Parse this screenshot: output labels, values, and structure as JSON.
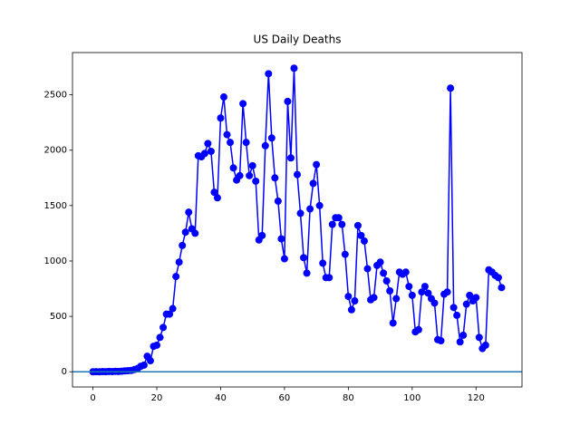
{
  "chart_data": {
    "type": "line",
    "title": "US Daily Deaths",
    "x": [
      0,
      1,
      2,
      3,
      4,
      5,
      6,
      7,
      8,
      9,
      10,
      11,
      12,
      13,
      14,
      15,
      16,
      17,
      18,
      19,
      20,
      21,
      22,
      23,
      24,
      25,
      26,
      27,
      28,
      29,
      30,
      31,
      32,
      33,
      34,
      35,
      36,
      37,
      38,
      39,
      40,
      41,
      42,
      43,
      44,
      45,
      46,
      47,
      48,
      49,
      50,
      51,
      52,
      53,
      54,
      55,
      56,
      57,
      58,
      59,
      60,
      61,
      62,
      63,
      64,
      65,
      66,
      67,
      68,
      69,
      70,
      71,
      72,
      73,
      74,
      75,
      76,
      77,
      78,
      79,
      80,
      81,
      82,
      83,
      84,
      85,
      86,
      87,
      88,
      89,
      90,
      91,
      92,
      93,
      94,
      95,
      96,
      97,
      98,
      99,
      100,
      101,
      102,
      103,
      104,
      105,
      106,
      107,
      108,
      109,
      110,
      111,
      112,
      113,
      114,
      115,
      116,
      117,
      118,
      119,
      120,
      121,
      122,
      123,
      124,
      125,
      126,
      127,
      128
    ],
    "values": [
      0,
      1,
      0,
      2,
      1,
      3,
      2,
      4,
      3,
      5,
      8,
      10,
      12,
      20,
      30,
      50,
      60,
      140,
      100,
      230,
      240,
      310,
      400,
      520,
      520,
      570,
      860,
      990,
      1140,
      1260,
      1440,
      1290,
      1250,
      1950,
      1940,
      1970,
      2060,
      1990,
      1620,
      1570,
      2290,
      2480,
      2140,
      2070,
      1840,
      1730,
      1770,
      2420,
      2070,
      1770,
      1860,
      1720,
      1190,
      1230,
      2040,
      2690,
      2110,
      1750,
      1540,
      1200,
      1020,
      2440,
      1930,
      2740,
      1780,
      1430,
      1030,
      890,
      1470,
      1700,
      1870,
      1500,
      980,
      850,
      850,
      1330,
      1390,
      1390,
      1330,
      1060,
      680,
      560,
      640,
      1320,
      1230,
      1180,
      930,
      650,
      670,
      960,
      990,
      890,
      820,
      730,
      440,
      660,
      900,
      880,
      900,
      770,
      690,
      360,
      380,
      720,
      770,
      710,
      660,
      620,
      290,
      280,
      700,
      720,
      2560,
      580,
      510,
      270,
      330,
      610,
      690,
      640,
      670,
      310,
      210,
      240,
      920,
      900,
      870,
      850,
      760
    ],
    "color": "#0000ff",
    "hlines": [
      {
        "value": 0,
        "color": "#1f77b4"
      }
    ],
    "xlim": [
      -6.4,
      134.4
    ],
    "xticks": [
      0,
      20,
      40,
      60,
      80,
      100,
      120
    ],
    "ylim": [
      -137,
      2881
    ],
    "yticks": [
      0,
      500,
      1000,
      1500,
      2000,
      2500
    ],
    "grid": false
  }
}
